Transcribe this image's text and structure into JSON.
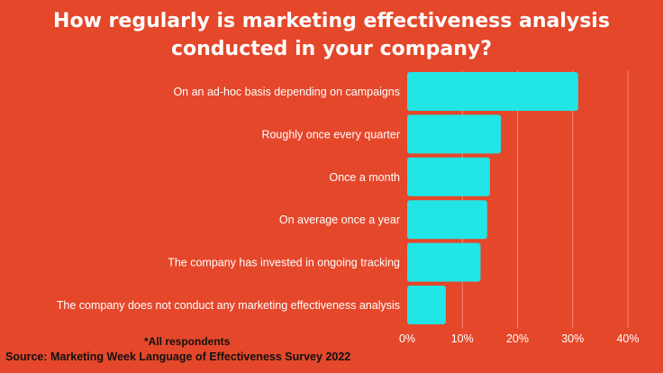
{
  "title_lines": [
    "How regularly is marketing effectiveness analysis",
    "conducted in your company?"
  ],
  "note": "*All respondents",
  "source": "Source: Marketing Week Language of Effectiveness Survey 2022",
  "colors": {
    "background": "#E5472A",
    "bar": "#22E5E5",
    "grid": "#F08A78",
    "text": "#FFFFFF",
    "note": "#111111"
  },
  "chart_data": {
    "type": "bar",
    "orientation": "horizontal",
    "categories": [
      "On an ad-hoc basis depending on campaigns",
      "Roughly once every quarter",
      "Once a month",
      "On average once a year",
      "The company has invested in ongoing tracking",
      "The company does not conduct any marketing effectiveness analysis"
    ],
    "values": [
      31,
      17,
      15,
      14.5,
      13.3,
      7
    ],
    "xlim": [
      0,
      40
    ],
    "xticks": [
      "0%",
      "10%",
      "20%",
      "30%",
      "40%"
    ],
    "grid": true,
    "title": "How regularly is marketing effectiveness analysis conducted in your company?",
    "xlabel": "",
    "ylabel": ""
  }
}
